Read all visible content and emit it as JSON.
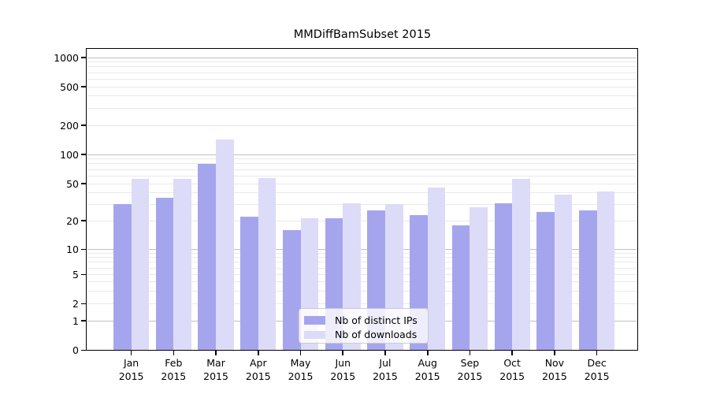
{
  "chart_data": {
    "type": "bar",
    "title": "MMDiffBamSubset 2015",
    "x_tick_year": "2015",
    "categories": [
      "Jan",
      "Feb",
      "Mar",
      "Apr",
      "May",
      "Jun",
      "Jul",
      "Aug",
      "Sep",
      "Oct",
      "Nov",
      "Dec"
    ],
    "series": [
      {
        "name": "Nb of distinct IPs",
        "color": "#a5a5ee",
        "values": [
          30,
          35,
          80,
          22,
          16,
          21,
          26,
          23,
          18,
          31,
          25,
          26
        ]
      },
      {
        "name": "Nb of downloads",
        "color": "#dcdcf8",
        "values": [
          56,
          56,
          143,
          57,
          21,
          31,
          30,
          45,
          28,
          56,
          38,
          41
        ]
      }
    ],
    "y_ticks": [
      0,
      1,
      2,
      5,
      10,
      20,
      50,
      100,
      200,
      500,
      1000
    ],
    "ylim": [
      0,
      1300
    ],
    "y_scale": "log-like (compressed below 10, 0 at axis base)",
    "grid": {
      "major_at": [
        1,
        10,
        100,
        1000
      ],
      "minor_per_decade": [
        2,
        3,
        4,
        5,
        6,
        7,
        8,
        9
      ]
    },
    "legend": {
      "position": "lower center",
      "entries": [
        "Nb of distinct IPs",
        "Nb of downloads"
      ]
    }
  },
  "colors": {
    "distinct_ips": "#a5a5ee",
    "downloads": "#dcdcf8",
    "grid_major": "#c0c0c0",
    "grid_minor": "#e9e9e9",
    "axis": "#000000",
    "legend_border": "#cccccc",
    "background": "#ffffff",
    "text": "#000000"
  }
}
